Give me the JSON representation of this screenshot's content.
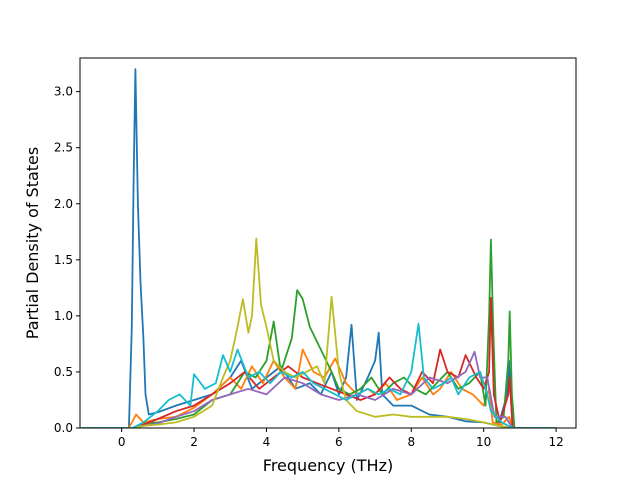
{
  "chart_data": {
    "type": "line",
    "title": "",
    "xlabel": "Frequency (THz)",
    "ylabel": "Partial Density of States",
    "xlim": [
      -1.15,
      12.55
    ],
    "ylim": [
      0,
      3.3
    ],
    "x_ticks": [
      0,
      2,
      4,
      6,
      8,
      10,
      12
    ],
    "y_ticks": [
      0.0,
      0.5,
      1.0,
      1.5,
      2.0,
      2.5,
      3.0
    ],
    "x_tick_labels": [
      "0",
      "2",
      "4",
      "6",
      "8",
      "10",
      "12"
    ],
    "y_tick_labels": [
      "0.0",
      "0.5",
      "1.0",
      "1.5",
      "2.0",
      "2.5",
      "3.0"
    ],
    "grid": false,
    "legend": "none",
    "series": [
      {
        "color": "#1f77b4",
        "points": [
          [
            -1.1,
            0
          ],
          [
            0.2,
            0
          ],
          [
            0.28,
            0.9
          ],
          [
            0.33,
            2.2
          ],
          [
            0.38,
            3.2
          ],
          [
            0.45,
            2.0
          ],
          [
            0.52,
            1.3
          ],
          [
            0.6,
            0.8
          ],
          [
            0.66,
            0.3
          ],
          [
            0.75,
            0.12
          ],
          [
            1.0,
            0.14
          ],
          [
            1.5,
            0.2
          ],
          [
            2.0,
            0.25
          ],
          [
            2.5,
            0.3
          ],
          [
            3.0,
            0.45
          ],
          [
            3.3,
            0.6
          ],
          [
            3.6,
            0.35
          ],
          [
            4.0,
            0.45
          ],
          [
            4.4,
            0.55
          ],
          [
            4.8,
            0.35
          ],
          [
            5.2,
            0.4
          ],
          [
            5.5,
            0.3
          ],
          [
            5.8,
            0.5
          ],
          [
            6.0,
            0.3
          ],
          [
            6.2,
            0.45
          ],
          [
            6.35,
            0.92
          ],
          [
            6.5,
            0.25
          ],
          [
            6.8,
            0.45
          ],
          [
            7.0,
            0.6
          ],
          [
            7.1,
            0.85
          ],
          [
            7.2,
            0.3
          ],
          [
            7.5,
            0.2
          ],
          [
            8.0,
            0.2
          ],
          [
            8.5,
            0.12
          ],
          [
            9.0,
            0.1
          ],
          [
            9.5,
            0.06
          ],
          [
            10.0,
            0.05
          ],
          [
            10.4,
            0.02
          ],
          [
            10.65,
            0.3
          ],
          [
            10.7,
            0.6
          ],
          [
            10.8,
            0
          ],
          [
            12.0,
            0
          ]
        ]
      },
      {
        "color": "#ff7f0e",
        "points": [
          [
            -1.1,
            0
          ],
          [
            0.2,
            0
          ],
          [
            0.4,
            0.12
          ],
          [
            0.6,
            0.05
          ],
          [
            1.0,
            0.08
          ],
          [
            1.5,
            0.1
          ],
          [
            2.0,
            0.18
          ],
          [
            2.5,
            0.3
          ],
          [
            3.0,
            0.45
          ],
          [
            3.3,
            0.35
          ],
          [
            3.6,
            0.55
          ],
          [
            3.9,
            0.4
          ],
          [
            4.2,
            0.6
          ],
          [
            4.5,
            0.45
          ],
          [
            4.8,
            0.35
          ],
          [
            5.0,
            0.7
          ],
          [
            5.3,
            0.5
          ],
          [
            5.6,
            0.45
          ],
          [
            5.9,
            0.62
          ],
          [
            6.2,
            0.4
          ],
          [
            6.5,
            0.3
          ],
          [
            6.8,
            0.35
          ],
          [
            7.0,
            0.3
          ],
          [
            7.3,
            0.4
          ],
          [
            7.6,
            0.25
          ],
          [
            8.0,
            0.3
          ],
          [
            8.3,
            0.45
          ],
          [
            8.6,
            0.3
          ],
          [
            8.8,
            0.35
          ],
          [
            9.1,
            0.5
          ],
          [
            9.4,
            0.35
          ],
          [
            9.7,
            0.3
          ],
          [
            10.0,
            0.2
          ],
          [
            10.15,
            0.35
          ],
          [
            10.25,
            0.05
          ],
          [
            10.5,
            0.03
          ],
          [
            10.7,
            0.1
          ],
          [
            10.8,
            0
          ],
          [
            12.0,
            0
          ]
        ]
      },
      {
        "color": "#2ca02c",
        "points": [
          [
            -1.1,
            0
          ],
          [
            0.3,
            0
          ],
          [
            0.6,
            0.04
          ],
          [
            1.0,
            0.05
          ],
          [
            1.5,
            0.08
          ],
          [
            2.0,
            0.12
          ],
          [
            2.5,
            0.25
          ],
          [
            3.0,
            0.3
          ],
          [
            3.4,
            0.5
          ],
          [
            3.7,
            0.45
          ],
          [
            4.0,
            0.6
          ],
          [
            4.2,
            0.95
          ],
          [
            4.4,
            0.5
          ],
          [
            4.7,
            0.8
          ],
          [
            4.85,
            1.23
          ],
          [
            5.0,
            1.15
          ],
          [
            5.2,
            0.9
          ],
          [
            5.5,
            0.7
          ],
          [
            5.8,
            0.5
          ],
          [
            6.0,
            0.35
          ],
          [
            6.3,
            0.3
          ],
          [
            6.6,
            0.35
          ],
          [
            6.9,
            0.45
          ],
          [
            7.2,
            0.3
          ],
          [
            7.5,
            0.4
          ],
          [
            7.8,
            0.45
          ],
          [
            8.1,
            0.35
          ],
          [
            8.4,
            0.3
          ],
          [
            8.7,
            0.4
          ],
          [
            9.0,
            0.5
          ],
          [
            9.3,
            0.35
          ],
          [
            9.6,
            0.4
          ],
          [
            9.9,
            0.5
          ],
          [
            10.05,
            0.2
          ],
          [
            10.15,
            1.0
          ],
          [
            10.2,
            1.68
          ],
          [
            10.27,
            0.8
          ],
          [
            10.35,
            0.05
          ],
          [
            10.55,
            0.1
          ],
          [
            10.68,
            0.6
          ],
          [
            10.72,
            1.04
          ],
          [
            10.78,
            0.3
          ],
          [
            10.85,
            0
          ],
          [
            12.0,
            0
          ]
        ]
      },
      {
        "color": "#d62728",
        "points": [
          [
            -1.1,
            0
          ],
          [
            0.3,
            0
          ],
          [
            0.6,
            0.03
          ],
          [
            1.0,
            0.08
          ],
          [
            1.5,
            0.15
          ],
          [
            2.0,
            0.2
          ],
          [
            2.5,
            0.3
          ],
          [
            3.0,
            0.4
          ],
          [
            3.4,
            0.5
          ],
          [
            3.8,
            0.35
          ],
          [
            4.2,
            0.45
          ],
          [
            4.6,
            0.55
          ],
          [
            5.0,
            0.45
          ],
          [
            5.4,
            0.4
          ],
          [
            5.8,
            0.35
          ],
          [
            6.2,
            0.3
          ],
          [
            6.6,
            0.25
          ],
          [
            7.0,
            0.3
          ],
          [
            7.4,
            0.45
          ],
          [
            7.7,
            0.35
          ],
          [
            8.0,
            0.3
          ],
          [
            8.3,
            0.5
          ],
          [
            8.6,
            0.4
          ],
          [
            8.8,
            0.7
          ],
          [
            9.0,
            0.5
          ],
          [
            9.3,
            0.45
          ],
          [
            9.5,
            0.65
          ],
          [
            9.8,
            0.45
          ],
          [
            10.0,
            0.35
          ],
          [
            10.15,
            0.5
          ],
          [
            10.2,
            1.16
          ],
          [
            10.28,
            0.3
          ],
          [
            10.45,
            0.05
          ],
          [
            10.68,
            0.3
          ],
          [
            10.72,
            0.45
          ],
          [
            10.8,
            0
          ],
          [
            12.0,
            0
          ]
        ]
      },
      {
        "color": "#9467bd",
        "points": [
          [
            -1.1,
            0
          ],
          [
            0.3,
            0
          ],
          [
            0.6,
            0.02
          ],
          [
            1.0,
            0.04
          ],
          [
            1.5,
            0.1
          ],
          [
            2.0,
            0.15
          ],
          [
            2.5,
            0.25
          ],
          [
            3.0,
            0.3
          ],
          [
            3.5,
            0.35
          ],
          [
            4.0,
            0.3
          ],
          [
            4.5,
            0.45
          ],
          [
            5.0,
            0.4
          ],
          [
            5.5,
            0.3
          ],
          [
            6.0,
            0.25
          ],
          [
            6.5,
            0.3
          ],
          [
            7.0,
            0.25
          ],
          [
            7.5,
            0.35
          ],
          [
            8.0,
            0.3
          ],
          [
            8.5,
            0.45
          ],
          [
            9.0,
            0.4
          ],
          [
            9.5,
            0.5
          ],
          [
            9.75,
            0.68
          ],
          [
            9.9,
            0.45
          ],
          [
            10.1,
            0.45
          ],
          [
            10.3,
            0.1
          ],
          [
            10.6,
            0.1
          ],
          [
            10.8,
            0
          ],
          [
            12.0,
            0
          ]
        ]
      },
      {
        "color": "#bcbd22",
        "points": [
          [
            -1.1,
            0
          ],
          [
            0.3,
            0
          ],
          [
            0.6,
            0.02
          ],
          [
            1.0,
            0.03
          ],
          [
            1.5,
            0.05
          ],
          [
            2.0,
            0.1
          ],
          [
            2.5,
            0.2
          ],
          [
            2.8,
            0.45
          ],
          [
            3.0,
            0.6
          ],
          [
            3.2,
            0.9
          ],
          [
            3.35,
            1.15
          ],
          [
            3.5,
            0.85
          ],
          [
            3.6,
            1.0
          ],
          [
            3.72,
            1.69
          ],
          [
            3.85,
            1.1
          ],
          [
            4.0,
            0.9
          ],
          [
            4.2,
            0.6
          ],
          [
            4.5,
            0.5
          ],
          [
            4.8,
            0.45
          ],
          [
            5.1,
            0.5
          ],
          [
            5.4,
            0.55
          ],
          [
            5.6,
            0.4
          ],
          [
            5.8,
            1.17
          ],
          [
            6.0,
            0.5
          ],
          [
            6.2,
            0.25
          ],
          [
            6.5,
            0.15
          ],
          [
            6.8,
            0.12
          ],
          [
            7.0,
            0.1
          ],
          [
            7.5,
            0.12
          ],
          [
            8.0,
            0.1
          ],
          [
            8.5,
            0.1
          ],
          [
            9.0,
            0.1
          ],
          [
            9.5,
            0.08
          ],
          [
            10.0,
            0.05
          ],
          [
            10.4,
            0.02
          ],
          [
            10.8,
            0
          ],
          [
            12.0,
            0
          ]
        ]
      },
      {
        "color": "#17becf",
        "points": [
          [
            -1.1,
            0
          ],
          [
            0.3,
            0
          ],
          [
            0.6,
            0.05
          ],
          [
            1.0,
            0.15
          ],
          [
            1.3,
            0.25
          ],
          [
            1.6,
            0.3
          ],
          [
            1.9,
            0.2
          ],
          [
            2.0,
            0.48
          ],
          [
            2.3,
            0.35
          ],
          [
            2.6,
            0.4
          ],
          [
            2.8,
            0.65
          ],
          [
            3.0,
            0.5
          ],
          [
            3.2,
            0.7
          ],
          [
            3.5,
            0.45
          ],
          [
            3.8,
            0.5
          ],
          [
            4.1,
            0.4
          ],
          [
            4.4,
            0.5
          ],
          [
            4.7,
            0.45
          ],
          [
            5.0,
            0.5
          ],
          [
            5.3,
            0.4
          ],
          [
            5.6,
            0.35
          ],
          [
            5.9,
            0.3
          ],
          [
            6.2,
            0.25
          ],
          [
            6.5,
            0.3
          ],
          [
            6.8,
            0.35
          ],
          [
            7.1,
            0.3
          ],
          [
            7.4,
            0.35
          ],
          [
            7.7,
            0.3
          ],
          [
            8.0,
            0.5
          ],
          [
            8.2,
            0.93
          ],
          [
            8.35,
            0.45
          ],
          [
            8.6,
            0.35
          ],
          [
            8.9,
            0.4
          ],
          [
            9.1,
            0.45
          ],
          [
            9.3,
            0.3
          ],
          [
            9.6,
            0.45
          ],
          [
            9.9,
            0.5
          ],
          [
            10.1,
            0.3
          ],
          [
            10.2,
            0.15
          ],
          [
            10.5,
            0.05
          ],
          [
            10.8,
            0
          ],
          [
            12.0,
            0
          ]
        ]
      }
    ]
  }
}
